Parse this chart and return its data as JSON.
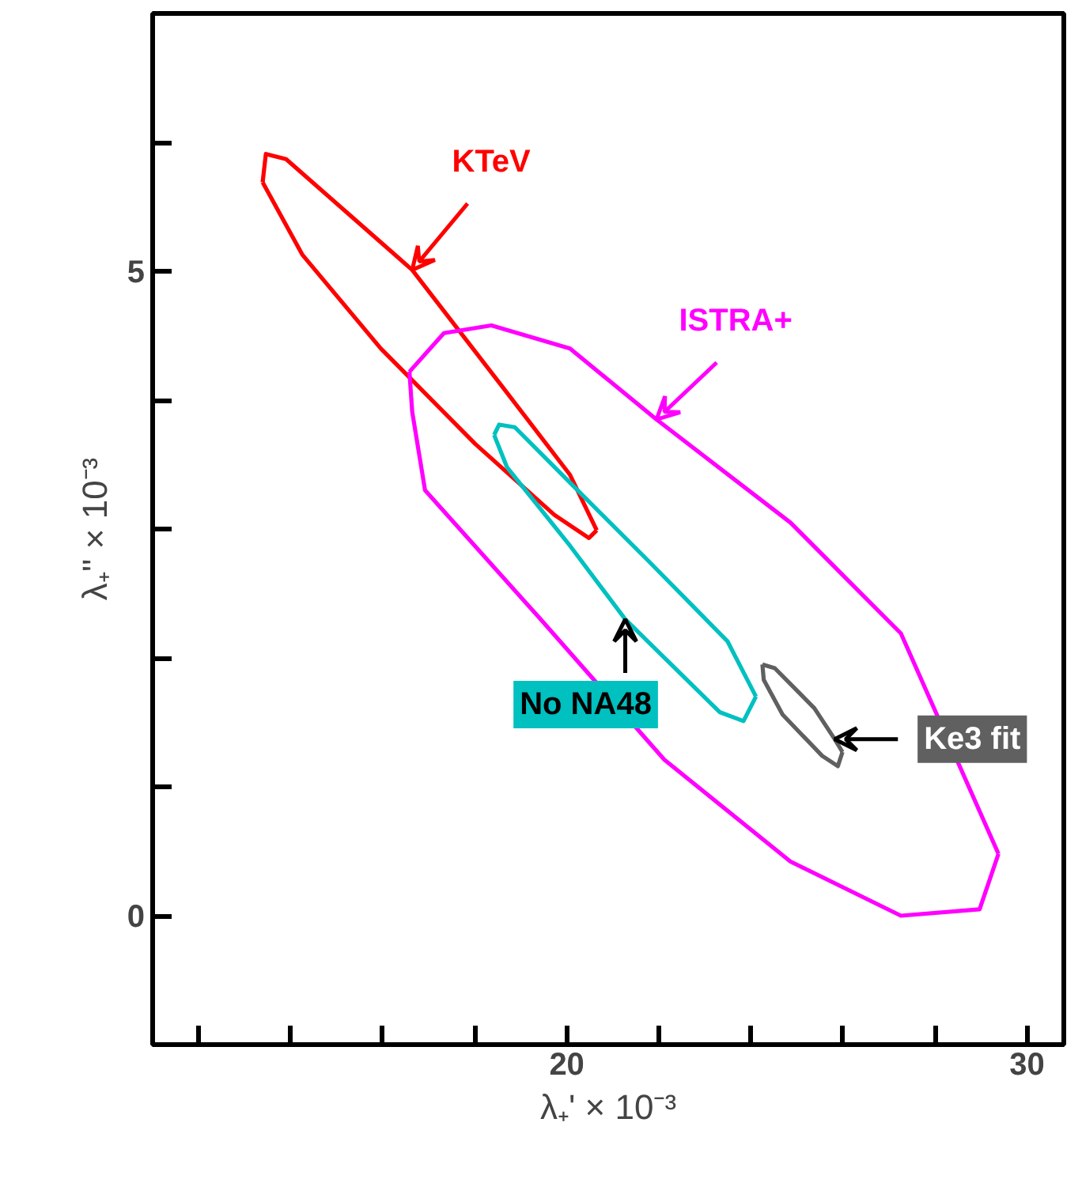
{
  "chart_data": {
    "type": "line",
    "xlabel": "λ₊' × 10⁻³",
    "ylabel": "λ₊'' × 10⁻³",
    "xlim": [
      11,
      30.8
    ],
    "ylim": [
      -1,
      7
    ],
    "xticks": [
      {
        "value": 12,
        "label": null
      },
      {
        "value": 14,
        "label": null
      },
      {
        "value": 16,
        "label": null
      },
      {
        "value": 18,
        "label": null
      },
      20,
      {
        "value": 22,
        "label": null
      },
      {
        "value": 24,
        "label": null
      },
      {
        "value": 26,
        "label": null
      },
      {
        "value": 28,
        "label": null
      },
      30
    ],
    "yticks": [
      0,
      {
        "value": 1,
        "label": null
      },
      {
        "value": 2,
        "label": null
      },
      {
        "value": 3,
        "label": null
      },
      {
        "value": 4,
        "label": null
      },
      5,
      {
        "value": 6,
        "label": null
      }
    ],
    "grid": false,
    "marker": "none",
    "line_style": "solid",
    "series": [
      {
        "color": "#ff0000",
        "x": [
          13.39,
          13.46,
          13.9,
          15.27,
          16.64,
          18.63,
          20.07,
          20.65
        ],
        "values": [
          5.69,
          5.91,
          5.87,
          5.44,
          5.01,
          4.09,
          3.42,
          2.99
        ]
      },
      {
        "color": "#ff0000",
        "x": [
          13.39,
          14.25,
          15.96,
          18.01,
          19.73,
          20.48,
          20.65
        ],
        "values": [
          5.69,
          5.13,
          4.4,
          3.66,
          3.11,
          2.93,
          2.99
        ]
      },
      {
        "color": "#ff00ff",
        "x": [
          16.58,
          17.33,
          18.36,
          20.07,
          21.95,
          24.86,
          27.26,
          29.38
        ],
        "values": [
          4.22,
          4.52,
          4.58,
          4.4,
          3.85,
          3.05,
          2.19,
          0.48
        ]
      },
      {
        "color": "#ff00ff",
        "x": [
          16.58,
          16.64,
          16.92,
          19.38,
          22.12,
          24.86,
          27.26,
          28.97,
          29.38
        ],
        "values": [
          4.22,
          3.91,
          3.3,
          2.32,
          1.21,
          0.42,
          0.0,
          0.05,
          0.48
        ]
      },
      {
        "color": "#00c0c0",
        "x": [
          18.42,
          18.53,
          18.87,
          20.07,
          21.78,
          23.49,
          24.11
        ],
        "values": [
          3.73,
          3.81,
          3.79,
          3.36,
          2.75,
          2.13,
          1.7
        ]
      },
      {
        "color": "#00c0c0",
        "x": [
          18.42,
          18.7,
          20.07,
          21.27,
          23.32,
          23.84,
          24.11
        ],
        "values": [
          3.73,
          3.48,
          2.87,
          2.3,
          1.58,
          1.51,
          1.7
        ]
      },
      {
        "color": "#606060",
        "x": [
          24.25,
          24.52,
          25.38,
          25.82,
          25.99
        ],
        "values": [
          1.95,
          1.92,
          1.61,
          1.37,
          1.27
        ]
      },
      {
        "color": "#606060",
        "x": [
          24.25,
          24.28,
          24.69,
          25.55,
          25.89,
          25.99
        ],
        "values": [
          1.95,
          1.83,
          1.56,
          1.24,
          1.16,
          1.27
        ]
      }
    ],
    "annotations": [
      {
        "text": "KTeV",
        "x": 16.64,
        "y": 5.01
      },
      {
        "text": "ISTRA+",
        "x": 21.95,
        "y": 3.85
      },
      {
        "text": "No NA48",
        "x": 21.27,
        "y": 2.3
      },
      {
        "text": "Ke3 fit",
        "x": 25.82,
        "y": 1.37
      }
    ]
  }
}
